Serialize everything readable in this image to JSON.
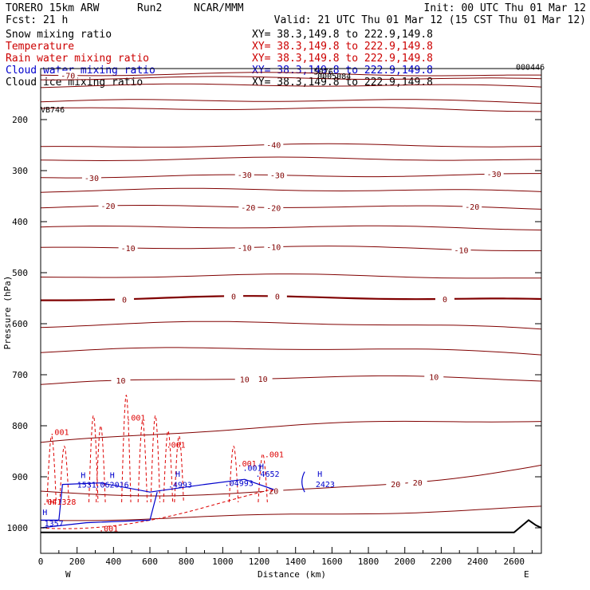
{
  "header": {
    "model": "TORERO  15km ARW",
    "run": "Run2",
    "org": "NCAR/MMM",
    "init": "Init: 00 UTC Thu 01 Mar 12",
    "fcst": "Fcst:   21 h",
    "valid": "Valid: 21 UTC Thu 01 Mar 12 (15 CST Thu 01 Mar 12)"
  },
  "fields": [
    {
      "name": "Snow mixing ratio",
      "xy": "XY=  38.3,149.8 to 222.9,149.8",
      "color": "#000000"
    },
    {
      "name": "Temperature",
      "xy": "XY=  38.3,149.8 to 222.9,149.8",
      "color": "#cc0000"
    },
    {
      "name": "Rain water mixing ratio",
      "xy": "XY=  38.3,149.8 to 222.9,149.8",
      "color": "#cc0000"
    },
    {
      "name": "Cloud water mixing ratio",
      "xy": "XY=  38.3,149.8 to 222.9,149.8",
      "color": "#0000cc"
    },
    {
      "name": "Cloud ice mixing ratio",
      "xy": "XY=  38.3,149.8 to 222.9,149.8",
      "color": "#000000"
    }
  ],
  "chart_data": {
    "type": "line",
    "ylabel": "Pressure (hPa)",
    "xlabel": "Distance (km)",
    "x_ticks": [
      0,
      200,
      400,
      600,
      800,
      1000,
      1200,
      1400,
      1600,
      1800,
      2000,
      2200,
      2400,
      2600
    ],
    "y_ticks": [
      200,
      300,
      400,
      500,
      600,
      700,
      800,
      900,
      1000
    ],
    "xlim": [
      0,
      2750
    ],
    "ylim": [
      1050,
      100
    ],
    "y_scale": "linear",
    "west_label": "W",
    "east_label": "E",
    "colors": {
      "temperature": "#800000",
      "rain": "#dd0000",
      "cloud": "#0000cc",
      "ground": "#000000"
    },
    "temperature_isotherms": [
      {
        "p": [
          113,
          110,
          115
        ],
        "labels": [
          {
            "x": 150,
            "text": "-70"
          }
        ]
      },
      {
        "p": [
          120,
          118,
          122
        ],
        "labels": []
      },
      {
        "p": [
          135,
          132,
          136
        ],
        "labels": []
      },
      {
        "p": [
          165,
          162,
          166
        ],
        "labels": []
      },
      {
        "p": [
          180,
          178,
          182
        ],
        "labels": []
      },
      {
        "p": [
          255,
          250,
          252
        ],
        "labels": [
          {
            "x": 1280,
            "text": "-40"
          }
        ]
      },
      {
        "p": [
          280,
          276,
          280
        ],
        "labels": []
      },
      {
        "p": [
          312,
          310,
          308
        ],
        "labels": [
          {
            "x": 280,
            "text": "-30"
          },
          {
            "x": 1120,
            "text": "-30"
          },
          {
            "x": 1300,
            "text": "-30"
          },
          {
            "x": 2490,
            "text": "-30"
          }
        ]
      },
      {
        "p": [
          340,
          337,
          342
        ],
        "labels": []
      },
      {
        "p": [
          372,
          370,
          374
        ],
        "labels": [
          {
            "x": 370,
            "text": "-20"
          },
          {
            "x": 1140,
            "text": "-20"
          },
          {
            "x": 1280,
            "text": "-20"
          },
          {
            "x": 2370,
            "text": "-20"
          }
        ]
      },
      {
        "p": [
          412,
          410,
          414
        ],
        "labels": []
      },
      {
        "p": [
          453,
          450,
          456
        ],
        "labels": [
          {
            "x": 480,
            "text": "-10"
          },
          {
            "x": 1120,
            "text": "-10"
          },
          {
            "x": 1280,
            "text": "-10"
          },
          {
            "x": 2310,
            "text": "-10"
          }
        ]
      },
      {
        "p": [
          510,
          505,
          512
        ],
        "labels": []
      },
      {
        "p": [
          553,
          548,
          554
        ],
        "labels": [
          {
            "x": 460,
            "text": "0"
          },
          {
            "x": 1060,
            "text": "0"
          },
          {
            "x": 1300,
            "text": "0"
          },
          {
            "x": 2220,
            "text": "0"
          }
        ]
      },
      {
        "p": [
          605,
          598,
          612
        ],
        "labels": []
      },
      {
        "p": [
          655,
          648,
          660
        ],
        "labels": []
      },
      {
        "p": [
          720,
          705,
          710
        ],
        "labels": [
          {
            "x": 440,
            "text": "10"
          },
          {
            "x": 1120,
            "text": "10"
          },
          {
            "x": 1220,
            "text": "10"
          },
          {
            "x": 2160,
            "text": "10"
          }
        ]
      },
      {
        "p": [
          835,
          800,
          790
        ],
        "labels": []
      },
      {
        "p": [
          930,
          928,
          878
        ],
        "labels": [
          {
            "x": 1280,
            "text": "20"
          },
          {
            "x": 1950,
            "text": "20"
          },
          {
            "x": 2070,
            "text": "20"
          }
        ]
      },
      {
        "p": [
          985,
          975,
          960
        ],
        "labels": []
      }
    ],
    "rain_labels": [
      {
        "x": 50,
        "p": 818,
        "text": ".001"
      },
      {
        "x": 470,
        "p": 790,
        "text": ".001"
      },
      {
        "x": 690,
        "p": 843,
        "text": ".001"
      },
      {
        "x": 1080,
        "p": 880,
        "text": ".001"
      },
      {
        "x": 1230,
        "p": 862,
        "text": ".001"
      },
      {
        "x": 10,
        "p": 955,
        "text": ".041328"
      },
      {
        "x": 320,
        "p": 1007,
        "text": ".001"
      }
    ],
    "cloud_labels": [
      {
        "x": 20,
        "p": 997,
        "text": "1357"
      },
      {
        "x": 200,
        "p": 921,
        "text": "1531"
      },
      {
        "x": 300,
        "p": 921,
        "text": ".062016"
      },
      {
        "x": 700,
        "p": 921,
        "text": ".4993"
      },
      {
        "x": 1010,
        "p": 918,
        "text": ".04993"
      },
      {
        "x": 1180,
        "p": 900,
        "text": ".4652"
      },
      {
        "x": 1510,
        "p": 920,
        "text": "2423"
      },
      {
        "x": 1110,
        "p": 888,
        "text": ".001"
      }
    ],
    "h_markers": [
      {
        "x": 220,
        "p": 902,
        "text": "H",
        "color": "#0000cc"
      },
      {
        "x": 380,
        "p": 902,
        "text": "H",
        "color": "#0000cc"
      },
      {
        "x": 740,
        "p": 900,
        "text": "H",
        "color": "#0000cc"
      },
      {
        "x": 1200,
        "p": 885,
        "text": "H",
        "color": "#0000cc"
      },
      {
        "x": 1520,
        "p": 900,
        "text": "H",
        "color": "#0000cc"
      },
      {
        "x": 50,
        "p": 955,
        "text": "H",
        "color": "#dd0000"
      },
      {
        "x": 10,
        "p": 975,
        "text": "H",
        "color": "#0000cc"
      }
    ],
    "overlap_text": [
      {
        "x": 1500,
        "p": 112,
        "text": "5076"
      },
      {
        "x": 1520,
        "p": 120,
        "text": "0005084"
      },
      {
        "x": 2610,
        "p": 102,
        "text": "000446"
      },
      {
        "x": 0,
        "p": 186,
        "text": "VB746"
      }
    ]
  }
}
